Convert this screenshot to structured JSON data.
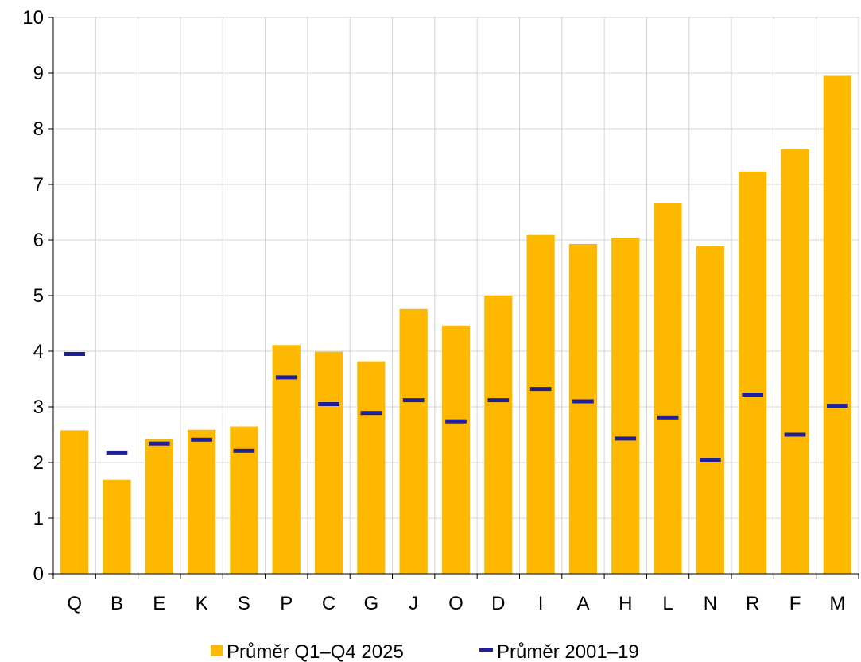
{
  "chart_data": {
    "type": "bar",
    "title": "",
    "xlabel": "",
    "ylabel": "",
    "ylim": [
      0,
      10
    ],
    "yticks": [
      "0",
      "1",
      "2",
      "3",
      "4",
      "5",
      "6",
      "7",
      "8",
      "9",
      "10"
    ],
    "grid": true,
    "legend_position": "bottom",
    "categories": [
      "Q",
      "B",
      "E",
      "K",
      "S",
      "P",
      "C",
      "G",
      "J",
      "O",
      "D",
      "I",
      "A",
      "H",
      "L",
      "N",
      "R",
      "F",
      "M"
    ],
    "series": [
      {
        "name": "Průměr Q1–Q4 2025",
        "type": "bar",
        "color": "#FFB800",
        "values": [
          2.58,
          1.69,
          2.42,
          2.59,
          2.65,
          4.11,
          3.99,
          3.82,
          4.76,
          4.46,
          5.0,
          6.09,
          5.93,
          6.04,
          6.66,
          5.89,
          7.23,
          7.63,
          8.95
        ]
      },
      {
        "name": "Průměr 2001–19",
        "type": "marker",
        "color": "#1F1F9A",
        "values": [
          3.95,
          2.18,
          2.34,
          2.41,
          2.21,
          3.53,
          3.05,
          2.89,
          3.12,
          2.74,
          3.12,
          3.32,
          3.1,
          2.43,
          2.81,
          2.05,
          3.22,
          2.5,
          3.02
        ]
      }
    ]
  }
}
